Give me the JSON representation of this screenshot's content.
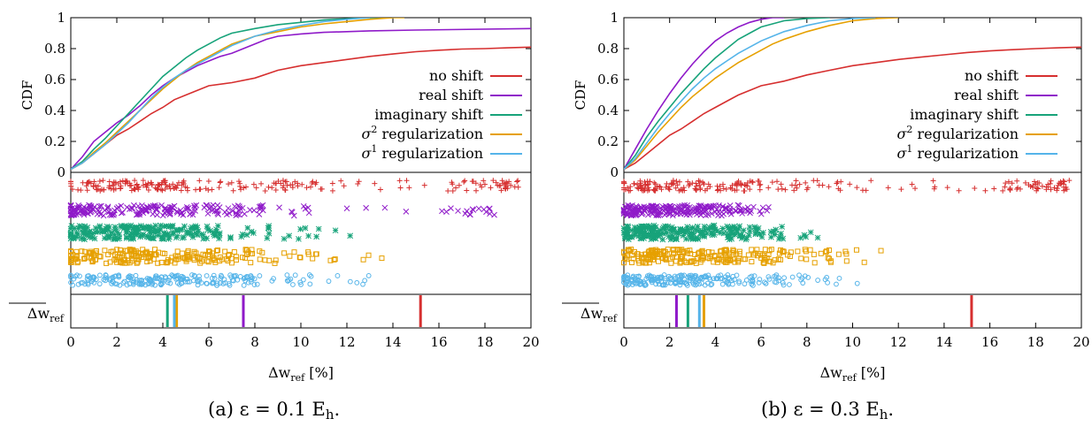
{
  "chart_data": [
    {
      "type": "line",
      "caption": "(a) ε = 0.1 E",
      "caption_sub": "h",
      "caption_end": ".",
      "ylabel": "CDF",
      "xlabel_main": "Δw",
      "xlabel_sub": "ref",
      "xlabel_unit": "[%]",
      "mean_label_main": "Δw",
      "mean_label_sub": "ref",
      "xlim": [
        0,
        20
      ],
      "ylim": [
        0,
        1
      ],
      "xticks": [
        "0",
        "2",
        "4",
        "6",
        "8",
        "10",
        "12",
        "14",
        "16",
        "18",
        "20"
      ],
      "yticks": [
        "0",
        "0.2",
        "0.4",
        "0.6",
        "0.8",
        "1"
      ],
      "legend_position": "bottom-right",
      "series": [
        {
          "key": "no_shift",
          "name": "no shift",
          "legend_plain": "no shift",
          "color": "#d62f2f",
          "marker": "plus",
          "mean": 15.2,
          "cdf": [
            [
              0,
              0.02
            ],
            [
              0.5,
              0.06
            ],
            [
              1,
              0.12
            ],
            [
              1.5,
              0.18
            ],
            [
              2,
              0.24
            ],
            [
              2.5,
              0.28
            ],
            [
              3,
              0.33
            ],
            [
              3.5,
              0.38
            ],
            [
              4,
              0.42
            ],
            [
              4.5,
              0.47
            ],
            [
              5,
              0.5
            ],
            [
              5.5,
              0.53
            ],
            [
              6,
              0.56
            ],
            [
              7,
              0.58
            ],
            [
              8,
              0.61
            ],
            [
              9,
              0.66
            ],
            [
              10,
              0.69
            ],
            [
              11,
              0.71
            ],
            [
              12,
              0.73
            ],
            [
              13,
              0.75
            ],
            [
              14,
              0.765
            ],
            [
              15,
              0.78
            ],
            [
              16,
              0.79
            ],
            [
              17,
              0.797
            ],
            [
              18,
              0.8
            ],
            [
              19,
              0.805
            ],
            [
              20,
              0.81
            ]
          ],
          "scatter_max": 19.5
        },
        {
          "key": "real_shift",
          "name": "real shift",
          "legend_plain": "real shift",
          "color": "#8f1ac9",
          "marker": "cross",
          "mean": 7.5,
          "cdf": [
            [
              0,
              0.02
            ],
            [
              0.5,
              0.1
            ],
            [
              1,
              0.2
            ],
            [
              1.5,
              0.26
            ],
            [
              2,
              0.32
            ],
            [
              2.5,
              0.37
            ],
            [
              3,
              0.43
            ],
            [
              3.5,
              0.5
            ],
            [
              4,
              0.56
            ],
            [
              4.5,
              0.61
            ],
            [
              5,
              0.65
            ],
            [
              5.5,
              0.69
            ],
            [
              6,
              0.72
            ],
            [
              6.5,
              0.75
            ],
            [
              7,
              0.77
            ],
            [
              7.5,
              0.8
            ],
            [
              8,
              0.83
            ],
            [
              8.5,
              0.86
            ],
            [
              9,
              0.88
            ],
            [
              10,
              0.895
            ],
            [
              11,
              0.905
            ],
            [
              12,
              0.91
            ],
            [
              13,
              0.915
            ],
            [
              15,
              0.92
            ],
            [
              20,
              0.93
            ]
          ],
          "scatter_max": 18.5
        },
        {
          "key": "imaginary_shift",
          "name": "imaginary shift",
          "legend_plain": "imaginary shift",
          "color": "#17a37a",
          "marker": "star",
          "mean": 4.2,
          "cdf": [
            [
              0,
              0.02
            ],
            [
              0.5,
              0.07
            ],
            [
              1,
              0.15
            ],
            [
              1.5,
              0.22
            ],
            [
              2,
              0.3
            ],
            [
              2.5,
              0.38
            ],
            [
              3,
              0.46
            ],
            [
              3.5,
              0.54
            ],
            [
              4,
              0.62
            ],
            [
              4.5,
              0.68
            ],
            [
              5,
              0.74
            ],
            [
              5.5,
              0.79
            ],
            [
              6,
              0.83
            ],
            [
              6.5,
              0.87
            ],
            [
              7,
              0.9
            ],
            [
              8,
              0.93
            ],
            [
              9,
              0.955
            ],
            [
              10,
              0.97
            ],
            [
              11,
              0.985
            ],
            [
              12,
              0.993
            ],
            [
              13,
              1.0
            ],
            [
              14,
              1.0
            ]
          ],
          "scatter_max": 12.2
        },
        {
          "key": "sigma2",
          "name": "σ² regularization",
          "legend_sup": "2",
          "legend_rest": " regularization",
          "color": "#e6a000",
          "marker": "square",
          "mean": 4.6,
          "cdf": [
            [
              0,
              0.02
            ],
            [
              0.5,
              0.06
            ],
            [
              1,
              0.13
            ],
            [
              1.5,
              0.19
            ],
            [
              2,
              0.26
            ],
            [
              2.5,
              0.33
            ],
            [
              3,
              0.4
            ],
            [
              3.5,
              0.47
            ],
            [
              4,
              0.54
            ],
            [
              4.5,
              0.6
            ],
            [
              5,
              0.66
            ],
            [
              5.5,
              0.71
            ],
            [
              6,
              0.75
            ],
            [
              6.5,
              0.79
            ],
            [
              7,
              0.83
            ],
            [
              8,
              0.88
            ],
            [
              9,
              0.91
            ],
            [
              10,
              0.94
            ],
            [
              11,
              0.96
            ],
            [
              12,
              0.975
            ],
            [
              13,
              0.99
            ],
            [
              14,
              1.0
            ],
            [
              14.5,
              1.0
            ]
          ],
          "scatter_max": 14.3
        },
        {
          "key": "sigma1",
          "name": "σ¹ regularization",
          "legend_sup": "1",
          "legend_rest": " regularization",
          "color": "#55b4e9",
          "marker": "circle",
          "mean": 4.5,
          "cdf": [
            [
              0,
              0.02
            ],
            [
              0.5,
              0.06
            ],
            [
              1,
              0.12
            ],
            [
              1.5,
              0.18
            ],
            [
              2,
              0.25
            ],
            [
              2.5,
              0.32
            ],
            [
              3,
              0.4
            ],
            [
              3.5,
              0.48
            ],
            [
              4,
              0.55
            ],
            [
              4.5,
              0.61
            ],
            [
              5,
              0.66
            ],
            [
              5.5,
              0.7
            ],
            [
              6,
              0.74
            ],
            [
              6.5,
              0.78
            ],
            [
              7,
              0.82
            ],
            [
              8,
              0.88
            ],
            [
              9,
              0.92
            ],
            [
              10,
              0.95
            ],
            [
              11,
              0.975
            ],
            [
              12,
              0.99
            ],
            [
              13,
              1.0
            ]
          ],
          "scatter_max": 13.0
        }
      ]
    },
    {
      "type": "line",
      "caption": "(b) ε = 0.3 E",
      "caption_sub": "h",
      "caption_end": ".",
      "ylabel": "CDF",
      "xlabel_main": "Δw",
      "xlabel_sub": "ref",
      "xlabel_unit": "[%]",
      "mean_label_main": "Δw",
      "mean_label_sub": "ref",
      "xlim": [
        0,
        20
      ],
      "ylim": [
        0,
        1
      ],
      "xticks": [
        "0",
        "2",
        "4",
        "6",
        "8",
        "10",
        "12",
        "14",
        "16",
        "18",
        "20"
      ],
      "yticks": [
        "0",
        "0.2",
        "0.4",
        "0.6",
        "0.8",
        "1"
      ],
      "legend_position": "bottom-right",
      "series": [
        {
          "key": "no_shift",
          "name": "no shift",
          "legend_plain": "no shift",
          "color": "#d62f2f",
          "marker": "plus",
          "mean": 15.2,
          "cdf": [
            [
              0,
              0.02
            ],
            [
              0.5,
              0.06
            ],
            [
              1,
              0.12
            ],
            [
              1.5,
              0.18
            ],
            [
              2,
              0.24
            ],
            [
              2.5,
              0.28
            ],
            [
              3,
              0.33
            ],
            [
              3.5,
              0.38
            ],
            [
              4,
              0.42
            ],
            [
              4.5,
              0.46
            ],
            [
              5,
              0.5
            ],
            [
              5.5,
              0.53
            ],
            [
              6,
              0.56
            ],
            [
              7,
              0.59
            ],
            [
              8,
              0.63
            ],
            [
              9,
              0.66
            ],
            [
              10,
              0.69
            ],
            [
              11,
              0.71
            ],
            [
              12,
              0.73
            ],
            [
              13,
              0.745
            ],
            [
              14,
              0.76
            ],
            [
              15,
              0.775
            ],
            [
              16,
              0.785
            ],
            [
              17,
              0.793
            ],
            [
              18,
              0.8
            ],
            [
              19,
              0.805
            ],
            [
              20,
              0.81
            ]
          ],
          "scatter_max": 19.5
        },
        {
          "key": "real_shift",
          "name": "real shift",
          "legend_plain": "real shift",
          "color": "#8f1ac9",
          "marker": "cross",
          "mean": 2.3,
          "cdf": [
            [
              0,
              0.02
            ],
            [
              0.5,
              0.15
            ],
            [
              1,
              0.28
            ],
            [
              1.5,
              0.4
            ],
            [
              2,
              0.51
            ],
            [
              2.5,
              0.61
            ],
            [
              3,
              0.7
            ],
            [
              3.5,
              0.78
            ],
            [
              4,
              0.85
            ],
            [
              4.5,
              0.9
            ],
            [
              5,
              0.94
            ],
            [
              5.5,
              0.97
            ],
            [
              6,
              0.99
            ],
            [
              6.5,
              1.0
            ],
            [
              7,
              1.0
            ]
          ],
          "scatter_max": 6.9
        },
        {
          "key": "imaginary_shift",
          "name": "imaginary shift",
          "legend_plain": "imaginary shift",
          "color": "#17a37a",
          "marker": "star",
          "mean": 2.8,
          "cdf": [
            [
              0,
              0.02
            ],
            [
              0.5,
              0.11
            ],
            [
              1,
              0.23
            ],
            [
              1.5,
              0.33
            ],
            [
              2,
              0.42
            ],
            [
              2.5,
              0.51
            ],
            [
              3,
              0.59
            ],
            [
              3.5,
              0.67
            ],
            [
              4,
              0.74
            ],
            [
              4.5,
              0.8
            ],
            [
              5,
              0.86
            ],
            [
              5.5,
              0.9
            ],
            [
              6,
              0.94
            ],
            [
              6.5,
              0.96
            ],
            [
              7,
              0.98
            ],
            [
              8,
              0.995
            ],
            [
              9,
              1.0
            ]
          ],
          "scatter_max": 8.9
        },
        {
          "key": "sigma2",
          "name": "σ² regularization",
          "legend_sup": "2",
          "legend_rest": " regularization",
          "color": "#e6a000",
          "marker": "square",
          "mean": 3.5,
          "cdf": [
            [
              0,
              0.02
            ],
            [
              0.5,
              0.08
            ],
            [
              1,
              0.17
            ],
            [
              1.5,
              0.26
            ],
            [
              2,
              0.34
            ],
            [
              2.5,
              0.42
            ],
            [
              3,
              0.49
            ],
            [
              3.5,
              0.55
            ],
            [
              4,
              0.61
            ],
            [
              4.5,
              0.66
            ],
            [
              5,
              0.71
            ],
            [
              5.5,
              0.75
            ],
            [
              6,
              0.79
            ],
            [
              6.5,
              0.83
            ],
            [
              7,
              0.86
            ],
            [
              8,
              0.91
            ],
            [
              9,
              0.95
            ],
            [
              10,
              0.98
            ],
            [
              11,
              0.995
            ],
            [
              12,
              1.0
            ]
          ],
          "scatter_max": 11.3
        },
        {
          "key": "sigma1",
          "name": "σ¹ regularization",
          "legend_sup": "1",
          "legend_rest": " regularization",
          "color": "#55b4e9",
          "marker": "circle",
          "mean": 3.3,
          "cdf": [
            [
              0,
              0.02
            ],
            [
              0.5,
              0.09
            ],
            [
              1,
              0.19
            ],
            [
              1.5,
              0.29
            ],
            [
              2,
              0.38
            ],
            [
              2.5,
              0.46
            ],
            [
              3,
              0.54
            ],
            [
              3.5,
              0.61
            ],
            [
              4,
              0.67
            ],
            [
              4.5,
              0.72
            ],
            [
              5,
              0.77
            ],
            [
              5.5,
              0.81
            ],
            [
              6,
              0.85
            ],
            [
              6.5,
              0.88
            ],
            [
              7,
              0.91
            ],
            [
              8,
              0.95
            ],
            [
              9,
              0.98
            ],
            [
              10,
              0.995
            ],
            [
              11,
              1.0
            ]
          ],
          "scatter_max": 10.3
        }
      ]
    }
  ]
}
